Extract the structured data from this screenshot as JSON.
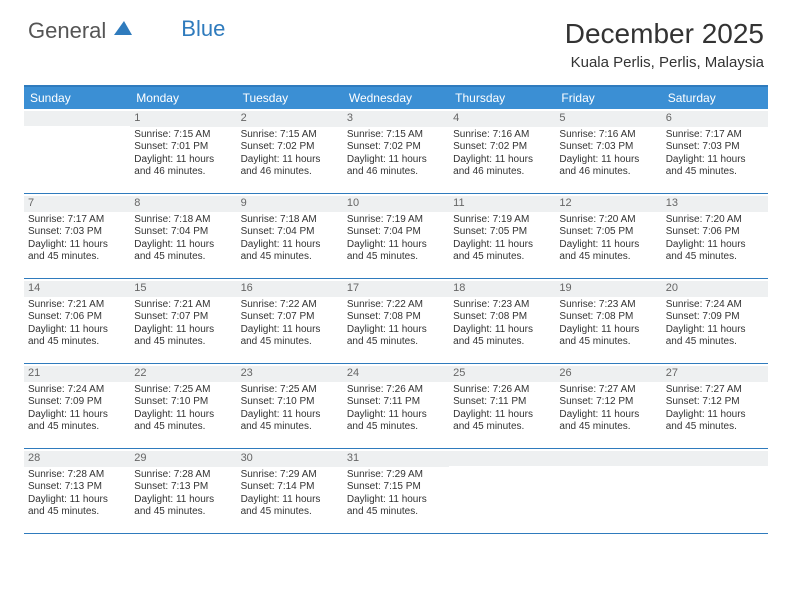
{
  "brand": {
    "part1": "General",
    "part2": "Blue",
    "logo_color": "#2f7bbd"
  },
  "title": "December 2025",
  "location": "Kuala Perlis, Perlis, Malaysia",
  "header_bg": "#3b8fd4",
  "border_color": "#2f7bbd",
  "daynum_bg": "#eef0f1",
  "weekdays": [
    "Sunday",
    "Monday",
    "Tuesday",
    "Wednesday",
    "Thursday",
    "Friday",
    "Saturday"
  ],
  "weeks": [
    [
      null,
      {
        "n": "1",
        "sunrise": "7:15 AM",
        "sunset": "7:01 PM",
        "daylight": "11 hours and 46 minutes."
      },
      {
        "n": "2",
        "sunrise": "7:15 AM",
        "sunset": "7:02 PM",
        "daylight": "11 hours and 46 minutes."
      },
      {
        "n": "3",
        "sunrise": "7:15 AM",
        "sunset": "7:02 PM",
        "daylight": "11 hours and 46 minutes."
      },
      {
        "n": "4",
        "sunrise": "7:16 AM",
        "sunset": "7:02 PM",
        "daylight": "11 hours and 46 minutes."
      },
      {
        "n": "5",
        "sunrise": "7:16 AM",
        "sunset": "7:03 PM",
        "daylight": "11 hours and 46 minutes."
      },
      {
        "n": "6",
        "sunrise": "7:17 AM",
        "sunset": "7:03 PM",
        "daylight": "11 hours and 45 minutes."
      }
    ],
    [
      {
        "n": "7",
        "sunrise": "7:17 AM",
        "sunset": "7:03 PM",
        "daylight": "11 hours and 45 minutes."
      },
      {
        "n": "8",
        "sunrise": "7:18 AM",
        "sunset": "7:04 PM",
        "daylight": "11 hours and 45 minutes."
      },
      {
        "n": "9",
        "sunrise": "7:18 AM",
        "sunset": "7:04 PM",
        "daylight": "11 hours and 45 minutes."
      },
      {
        "n": "10",
        "sunrise": "7:19 AM",
        "sunset": "7:04 PM",
        "daylight": "11 hours and 45 minutes."
      },
      {
        "n": "11",
        "sunrise": "7:19 AM",
        "sunset": "7:05 PM",
        "daylight": "11 hours and 45 minutes."
      },
      {
        "n": "12",
        "sunrise": "7:20 AM",
        "sunset": "7:05 PM",
        "daylight": "11 hours and 45 minutes."
      },
      {
        "n": "13",
        "sunrise": "7:20 AM",
        "sunset": "7:06 PM",
        "daylight": "11 hours and 45 minutes."
      }
    ],
    [
      {
        "n": "14",
        "sunrise": "7:21 AM",
        "sunset": "7:06 PM",
        "daylight": "11 hours and 45 minutes."
      },
      {
        "n": "15",
        "sunrise": "7:21 AM",
        "sunset": "7:07 PM",
        "daylight": "11 hours and 45 minutes."
      },
      {
        "n": "16",
        "sunrise": "7:22 AM",
        "sunset": "7:07 PM",
        "daylight": "11 hours and 45 minutes."
      },
      {
        "n": "17",
        "sunrise": "7:22 AM",
        "sunset": "7:08 PM",
        "daylight": "11 hours and 45 minutes."
      },
      {
        "n": "18",
        "sunrise": "7:23 AM",
        "sunset": "7:08 PM",
        "daylight": "11 hours and 45 minutes."
      },
      {
        "n": "19",
        "sunrise": "7:23 AM",
        "sunset": "7:08 PM",
        "daylight": "11 hours and 45 minutes."
      },
      {
        "n": "20",
        "sunrise": "7:24 AM",
        "sunset": "7:09 PM",
        "daylight": "11 hours and 45 minutes."
      }
    ],
    [
      {
        "n": "21",
        "sunrise": "7:24 AM",
        "sunset": "7:09 PM",
        "daylight": "11 hours and 45 minutes."
      },
      {
        "n": "22",
        "sunrise": "7:25 AM",
        "sunset": "7:10 PM",
        "daylight": "11 hours and 45 minutes."
      },
      {
        "n": "23",
        "sunrise": "7:25 AM",
        "sunset": "7:10 PM",
        "daylight": "11 hours and 45 minutes."
      },
      {
        "n": "24",
        "sunrise": "7:26 AM",
        "sunset": "7:11 PM",
        "daylight": "11 hours and 45 minutes."
      },
      {
        "n": "25",
        "sunrise": "7:26 AM",
        "sunset": "7:11 PM",
        "daylight": "11 hours and 45 minutes."
      },
      {
        "n": "26",
        "sunrise": "7:27 AM",
        "sunset": "7:12 PM",
        "daylight": "11 hours and 45 minutes."
      },
      {
        "n": "27",
        "sunrise": "7:27 AM",
        "sunset": "7:12 PM",
        "daylight": "11 hours and 45 minutes."
      }
    ],
    [
      {
        "n": "28",
        "sunrise": "7:28 AM",
        "sunset": "7:13 PM",
        "daylight": "11 hours and 45 minutes."
      },
      {
        "n": "29",
        "sunrise": "7:28 AM",
        "sunset": "7:13 PM",
        "daylight": "11 hours and 45 minutes."
      },
      {
        "n": "30",
        "sunrise": "7:29 AM",
        "sunset": "7:14 PM",
        "daylight": "11 hours and 45 minutes."
      },
      {
        "n": "31",
        "sunrise": "7:29 AM",
        "sunset": "7:15 PM",
        "daylight": "11 hours and 45 minutes."
      },
      null,
      null,
      null
    ]
  ],
  "labels": {
    "sunrise": "Sunrise:",
    "sunset": "Sunset:",
    "daylight": "Daylight:"
  }
}
